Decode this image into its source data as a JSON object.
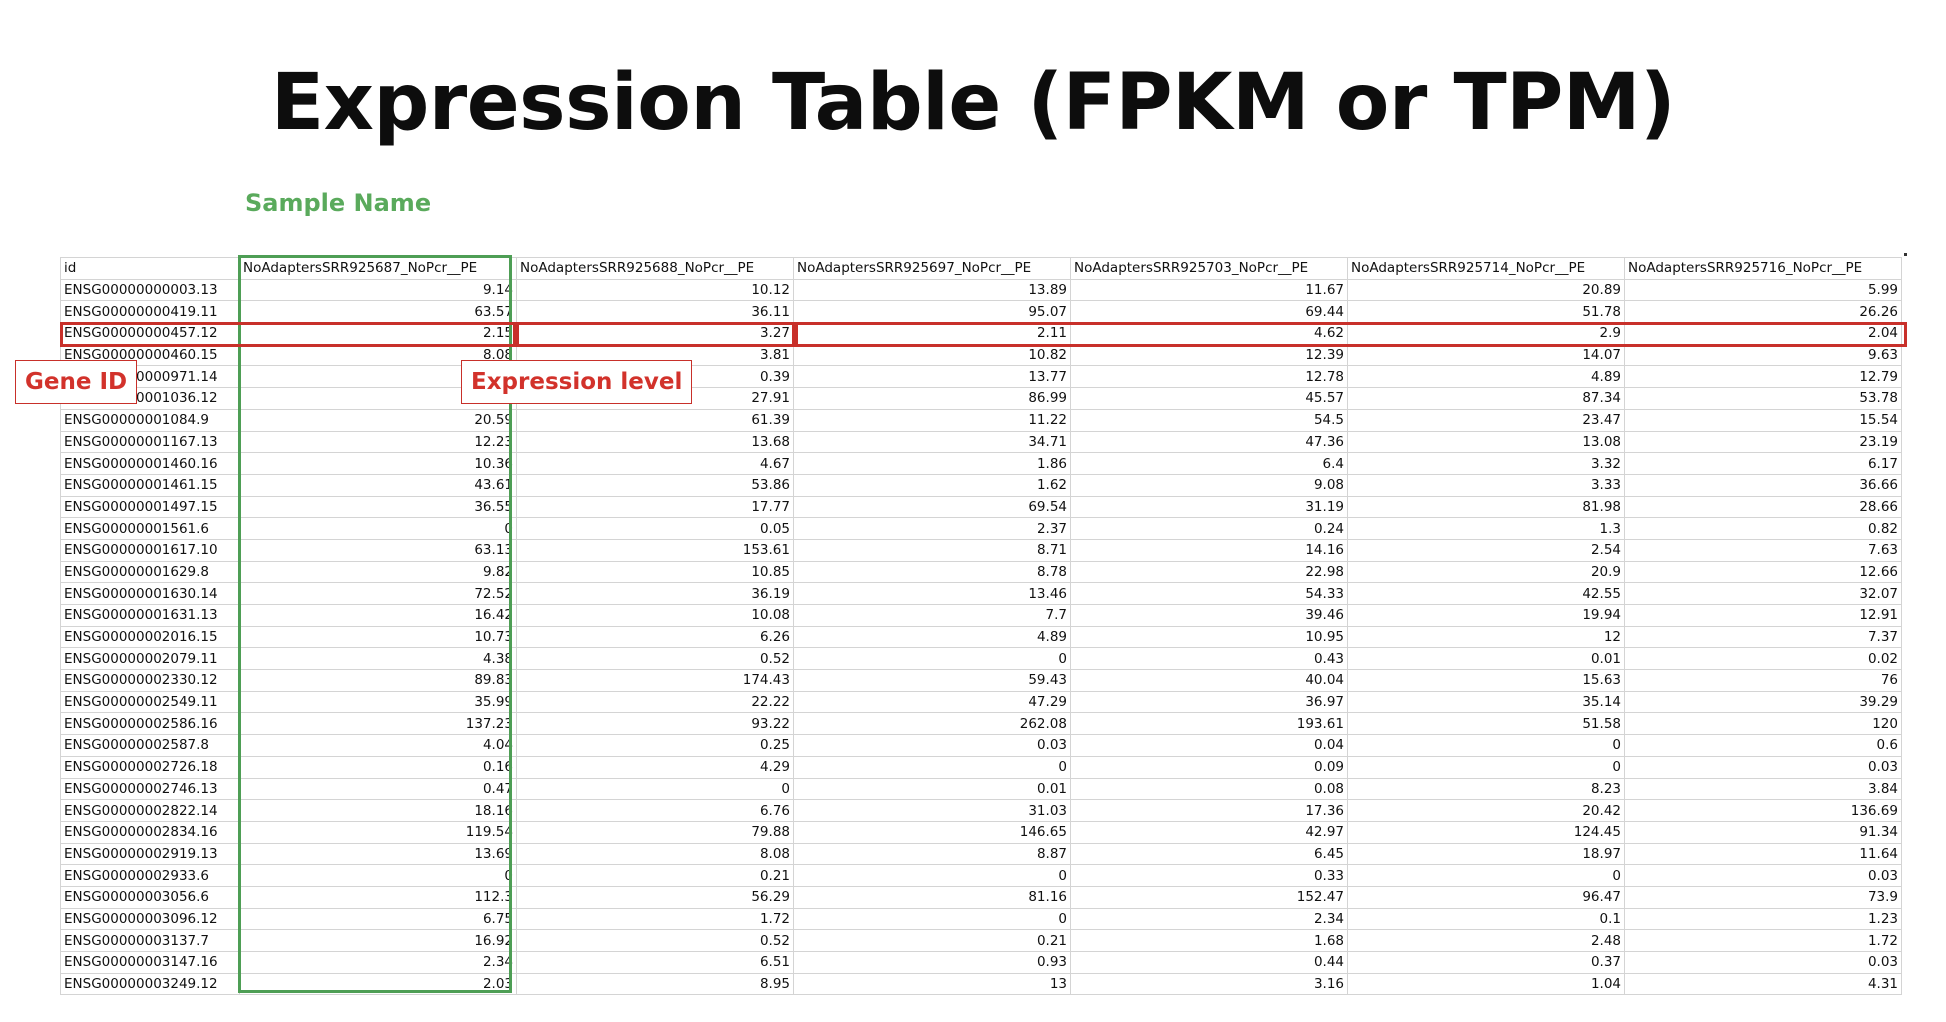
{
  "page": {
    "title": "Expression Table (FPKM or TPM)",
    "sample_label": "Sample Name",
    "gene_id_label": "Gene ID",
    "expression_label": "Expression level",
    "colors": {
      "sample_box": "#4e9e55",
      "highlight": "#c8302a",
      "sample_label": "#5aaa5c"
    }
  },
  "table": {
    "headers": [
      "id",
      "NoAdaptersSRR925687_NoPcr__PE",
      "NoAdaptersSRR925688_NoPcr__PE",
      "NoAdaptersSRR925697_NoPcr__PE",
      "NoAdaptersSRR925703_NoPcr__PE",
      "NoAdaptersSRR925714_NoPcr__PE",
      "NoAdaptersSRR925716_NoPcr__PE"
    ],
    "rows": [
      [
        "ENSG00000000003.13",
        "9.14",
        "10.12",
        "13.89",
        "11.67",
        "20.89",
        "5.99"
      ],
      [
        "ENSG00000000419.11",
        "63.57",
        "36.11",
        "95.07",
        "69.44",
        "51.78",
        "26.26"
      ],
      [
        "ENSG00000000457.12",
        "2.15",
        "3.27",
        "2.11",
        "4.62",
        "2.9",
        "2.04"
      ],
      [
        "ENSG00000000460.15",
        "8.08",
        "3.81",
        "10.82",
        "12.39",
        "14.07",
        "9.63"
      ],
      [
        "ENSG00000000971.14",
        "",
        "0.39",
        "13.77",
        "12.78",
        "4.89",
        "12.79"
      ],
      [
        "ENSG00000001036.12",
        "",
        "27.91",
        "86.99",
        "45.57",
        "87.34",
        "53.78"
      ],
      [
        "ENSG00000001084.9",
        "20.59",
        "61.39",
        "11.22",
        "54.5",
        "23.47",
        "15.54"
      ],
      [
        "ENSG00000001167.13",
        "12.23",
        "13.68",
        "34.71",
        "47.36",
        "13.08",
        "23.19"
      ],
      [
        "ENSG00000001460.16",
        "10.36",
        "4.67",
        "1.86",
        "6.4",
        "3.32",
        "6.17"
      ],
      [
        "ENSG00000001461.15",
        "43.61",
        "53.86",
        "1.62",
        "9.08",
        "3.33",
        "36.66"
      ],
      [
        "ENSG00000001497.15",
        "36.55",
        "17.77",
        "69.54",
        "31.19",
        "81.98",
        "28.66"
      ],
      [
        "ENSG00000001561.6",
        "0",
        "0.05",
        "2.37",
        "0.24",
        "1.3",
        "0.82"
      ],
      [
        "ENSG00000001617.10",
        "63.13",
        "153.61",
        "8.71",
        "14.16",
        "2.54",
        "7.63"
      ],
      [
        "ENSG00000001629.8",
        "9.82",
        "10.85",
        "8.78",
        "22.98",
        "20.9",
        "12.66"
      ],
      [
        "ENSG00000001630.14",
        "72.52",
        "36.19",
        "13.46",
        "54.33",
        "42.55",
        "32.07"
      ],
      [
        "ENSG00000001631.13",
        "16.42",
        "10.08",
        "7.7",
        "39.46",
        "19.94",
        "12.91"
      ],
      [
        "ENSG00000002016.15",
        "10.73",
        "6.26",
        "4.89",
        "10.95",
        "12",
        "7.37"
      ],
      [
        "ENSG00000002079.11",
        "4.38",
        "0.52",
        "0",
        "0.43",
        "0.01",
        "0.02"
      ],
      [
        "ENSG00000002330.12",
        "89.83",
        "174.43",
        "59.43",
        "40.04",
        "15.63",
        "76"
      ],
      [
        "ENSG00000002549.11",
        "35.99",
        "22.22",
        "47.29",
        "36.97",
        "35.14",
        "39.29"
      ],
      [
        "ENSG00000002586.16",
        "137.23",
        "93.22",
        "262.08",
        "193.61",
        "51.58",
        "120"
      ],
      [
        "ENSG00000002587.8",
        "4.04",
        "0.25",
        "0.03",
        "0.04",
        "0",
        "0.6"
      ],
      [
        "ENSG00000002726.18",
        "0.16",
        "4.29",
        "0",
        "0.09",
        "0",
        "0.03"
      ],
      [
        "ENSG00000002746.13",
        "0.47",
        "0",
        "0.01",
        "0.08",
        "8.23",
        "3.84"
      ],
      [
        "ENSG00000002822.14",
        "18.16",
        "6.76",
        "31.03",
        "17.36",
        "20.42",
        "136.69"
      ],
      [
        "ENSG00000002834.16",
        "119.54",
        "79.88",
        "146.65",
        "42.97",
        "124.45",
        "91.34"
      ],
      [
        "ENSG00000002919.13",
        "13.69",
        "8.08",
        "8.87",
        "6.45",
        "18.97",
        "11.64"
      ],
      [
        "ENSG00000002933.6",
        "0",
        "0.21",
        "0",
        "0.33",
        "0",
        "0.03"
      ],
      [
        "ENSG00000003056.6",
        "112.3",
        "56.29",
        "81.16",
        "152.47",
        "96.47",
        "73.9"
      ],
      [
        "ENSG00000003096.12",
        "6.75",
        "1.72",
        "0",
        "2.34",
        "0.1",
        "1.23"
      ],
      [
        "ENSG00000003137.7",
        "16.92",
        "0.52",
        "0.21",
        "1.68",
        "2.48",
        "1.72"
      ],
      [
        "ENSG00000003147.16",
        "2.34",
        "6.51",
        "0.93",
        "0.44",
        "0.37",
        "0.03"
      ],
      [
        "ENSG00000003249.12",
        "2.03",
        "8.95",
        "13",
        "3.16",
        "1.04",
        "4.31"
      ]
    ]
  }
}
